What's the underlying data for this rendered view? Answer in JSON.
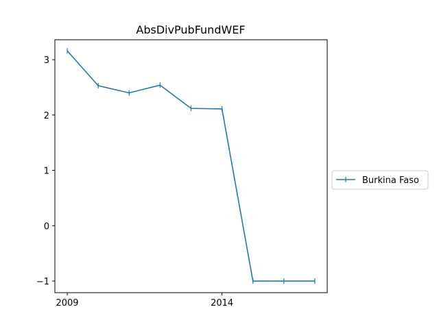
{
  "chart_data": {
    "type": "line",
    "title": "AbsDivPubFundWEF",
    "xlabel": "",
    "ylabel": "",
    "x": [
      2009,
      2010,
      2011,
      2012,
      2013,
      2014,
      2015,
      2016,
      2017
    ],
    "xticks": [
      2009,
      2014
    ],
    "xtick_labels": [
      "2009",
      "2014"
    ],
    "yticks": [
      -1,
      0,
      1,
      2,
      3
    ],
    "ytick_labels": [
      "−1",
      "0",
      "1",
      "2",
      "3"
    ],
    "xlim": [
      2008.6,
      2017.4
    ],
    "ylim": [
      -1.21,
      3.36
    ],
    "grid": false,
    "legend_position": "outside-right",
    "series": [
      {
        "name": "Burkina Faso",
        "color": "#1f77b4",
        "marker": "vertical-tick",
        "values": [
          3.16,
          2.53,
          2.4,
          2.54,
          2.12,
          2.11,
          -1.0,
          -1.0,
          -1.0
        ]
      }
    ]
  }
}
